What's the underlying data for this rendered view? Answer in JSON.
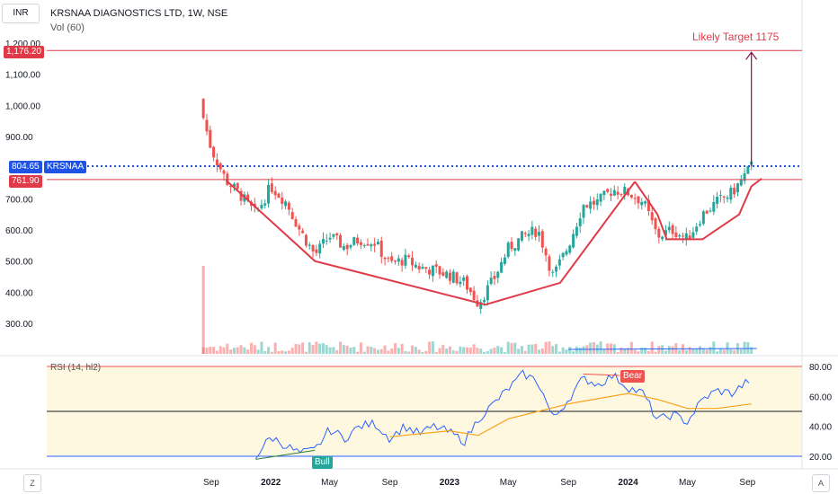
{
  "header": {
    "currency": "INR",
    "symbol_line": "KRSNAA DIAGNOSTICS LTD, 1W, NSE",
    "volume_line": "Vol (60)",
    "rsi_line": "RSI (14, hl2)"
  },
  "labels": {
    "target_text": "Likely Target 1175",
    "target_price": "1,176.20",
    "current_price": "804.65",
    "current_symbol": "KRSNAA",
    "resistance_price": "761.90",
    "bull_label": "Bull",
    "bear_label": "Bear",
    "corner_left": "Z",
    "corner_right": "A"
  },
  "colors": {
    "up": "#26a69a",
    "down": "#ef5350",
    "pattern": "#e03a48",
    "current": "#1e53e5",
    "rsi": "#2962ff",
    "rsi_ma": "#f7a21b",
    "arrow": "#880e4f",
    "rsi_band": "#fff8e1"
  },
  "chart_data": [
    {
      "type": "candlestick",
      "title": "KRSNAA DIAGNOSTICS LTD, 1W, NSE",
      "y_ticks": [
        300,
        400,
        500,
        600,
        700,
        800,
        900,
        1000,
        1100,
        1200
      ],
      "y_tick_labels": [
        "300.00",
        "400.00",
        "500.00",
        "600.00",
        "700.00",
        "",
        "900.00",
        "1,000.00",
        "1,100.00",
        "1,200.00"
      ],
      "x_ticks": [
        "2021-09-01",
        "2022-01-01",
        "2022-05-01",
        "2022-09-01",
        "2023-01-01",
        "2023-05-01",
        "2023-09-01",
        "2024-01-01",
        "2024-05-01",
        "2024-09-01"
      ],
      "x_tick_labels": [
        "Sep",
        "2022",
        "May",
        "Sep",
        "2023",
        "May",
        "Sep",
        "2024",
        "May",
        "Sep"
      ],
      "bold_ticks": [
        "2022",
        "2023",
        "2024"
      ],
      "series": [
        {
          "date": "2021-08-16",
          "close": 960
        },
        {
          "date": "2021-09-01",
          "close": 860
        },
        {
          "date": "2021-10-01",
          "close": 760
        },
        {
          "date": "2021-11-01",
          "close": 710
        },
        {
          "date": "2021-12-01",
          "close": 650
        },
        {
          "date": "2022-01-01",
          "close": 740
        },
        {
          "date": "2022-02-01",
          "close": 690
        },
        {
          "date": "2022-03-01",
          "close": 600
        },
        {
          "date": "2022-04-01",
          "close": 520
        },
        {
          "date": "2022-05-01",
          "close": 580
        },
        {
          "date": "2022-06-01",
          "close": 545
        },
        {
          "date": "2022-07-01",
          "close": 570
        },
        {
          "date": "2022-08-01",
          "close": 560
        },
        {
          "date": "2022-09-01",
          "close": 490
        },
        {
          "date": "2022-10-01",
          "close": 505
        },
        {
          "date": "2022-11-01",
          "close": 480
        },
        {
          "date": "2022-12-01",
          "close": 470
        },
        {
          "date": "2023-01-01",
          "close": 455
        },
        {
          "date": "2023-02-01",
          "close": 430
        },
        {
          "date": "2023-03-01",
          "close": 365
        },
        {
          "date": "2023-04-01",
          "close": 440
        },
        {
          "date": "2023-05-01",
          "close": 540
        },
        {
          "date": "2023-06-01",
          "close": 580
        },
        {
          "date": "2023-07-01",
          "close": 600
        },
        {
          "date": "2023-08-01",
          "close": 450
        },
        {
          "date": "2023-09-01",
          "close": 550
        },
        {
          "date": "2023-10-01",
          "close": 680
        },
        {
          "date": "2023-11-01",
          "close": 690
        },
        {
          "date": "2023-12-01",
          "close": 730
        },
        {
          "date": "2024-01-01",
          "close": 720
        },
        {
          "date": "2024-02-01",
          "close": 690
        },
        {
          "date": "2024-03-01",
          "close": 580
        },
        {
          "date": "2024-04-01",
          "close": 600
        },
        {
          "date": "2024-05-01",
          "close": 570
        },
        {
          "date": "2024-06-01",
          "close": 650
        },
        {
          "date": "2024-07-01",
          "close": 690
        },
        {
          "date": "2024-08-01",
          "close": 720
        },
        {
          "date": "2024-09-09",
          "close": 804.65
        }
      ],
      "levels": {
        "target": 1176.2,
        "current": 804.65,
        "resistance": 761.9
      },
      "pattern_line": [
        {
          "date": "2021-10-01",
          "value": 760
        },
        {
          "date": "2022-04-01",
          "value": 500
        },
        {
          "date": "2023-03-15",
          "value": 360
        },
        {
          "date": "2023-08-15",
          "value": 430
        },
        {
          "date": "2024-01-15",
          "value": 755
        }
      ],
      "handle_line": [
        {
          "date": "2024-01-15",
          "value": 755
        },
        {
          "date": "2024-03-01",
          "value": 650
        },
        {
          "date": "2024-03-20",
          "value": 570
        },
        {
          "date": "2024-06-01",
          "value": 570
        },
        {
          "date": "2024-08-15",
          "value": 650
        },
        {
          "date": "2024-09-09",
          "value": 740
        },
        {
          "date": "2024-09-30",
          "value": 765
        }
      ]
    },
    {
      "type": "bar",
      "title": "Vol (60)",
      "note": "volume bars, relative heights"
    },
    {
      "type": "line",
      "title": "RSI (14, hl2)",
      "y_ticks": [
        20,
        40,
        60,
        80
      ],
      "y_tick_labels": [
        "20.00",
        "40.00",
        "60.00",
        "80.00"
      ],
      "levels": [
        20,
        50,
        80
      ],
      "rsi": [
        {
          "date": "2021-12-01",
          "value": 20
        },
        {
          "date": "2022-01-01",
          "value": 33
        },
        {
          "date": "2022-02-01",
          "value": 27
        },
        {
          "date": "2022-03-01",
          "value": 22
        },
        {
          "date": "2022-04-01",
          "value": 24
        },
        {
          "date": "2022-05-01",
          "value": 38
        },
        {
          "date": "2022-06-01",
          "value": 32
        },
        {
          "date": "2022-07-01",
          "value": 40
        },
        {
          "date": "2022-08-01",
          "value": 42
        },
        {
          "date": "2022-09-01",
          "value": 32
        },
        {
          "date": "2022-10-01",
          "value": 40
        },
        {
          "date": "2022-11-01",
          "value": 35
        },
        {
          "date": "2022-12-01",
          "value": 40
        },
        {
          "date": "2023-01-01",
          "value": 36
        },
        {
          "date": "2023-02-01",
          "value": 30
        },
        {
          "date": "2023-03-01",
          "value": 45
        },
        {
          "date": "2023-04-01",
          "value": 55
        },
        {
          "date": "2023-05-01",
          "value": 65
        },
        {
          "date": "2023-06-01",
          "value": 75
        },
        {
          "date": "2023-07-01",
          "value": 70
        },
        {
          "date": "2023-08-01",
          "value": 45
        },
        {
          "date": "2023-09-01",
          "value": 58
        },
        {
          "date": "2023-10-01",
          "value": 72
        },
        {
          "date": "2023-11-01",
          "value": 68
        },
        {
          "date": "2023-12-01",
          "value": 74
        },
        {
          "date": "2024-01-01",
          "value": 66
        },
        {
          "date": "2024-02-01",
          "value": 62
        },
        {
          "date": "2024-03-01",
          "value": 44
        },
        {
          "date": "2024-04-01",
          "value": 48
        },
        {
          "date": "2024-05-01",
          "value": 43
        },
        {
          "date": "2024-06-01",
          "value": 58
        },
        {
          "date": "2024-07-01",
          "value": 64
        },
        {
          "date": "2024-08-01",
          "value": 62
        },
        {
          "date": "2024-09-09",
          "value": 72
        }
      ],
      "rsi_ma": [
        {
          "date": "2022-09-01",
          "value": 33
        },
        {
          "date": "2023-01-01",
          "value": 37
        },
        {
          "date": "2023-03-01",
          "value": 34
        },
        {
          "date": "2023-05-01",
          "value": 45
        },
        {
          "date": "2023-09-01",
          "value": 55
        },
        {
          "date": "2024-01-01",
          "value": 62
        },
        {
          "date": "2024-03-01",
          "value": 58
        },
        {
          "date": "2024-05-01",
          "value": 52
        },
        {
          "date": "2024-07-01",
          "value": 52
        },
        {
          "date": "2024-09-09",
          "value": 55
        }
      ]
    }
  ]
}
